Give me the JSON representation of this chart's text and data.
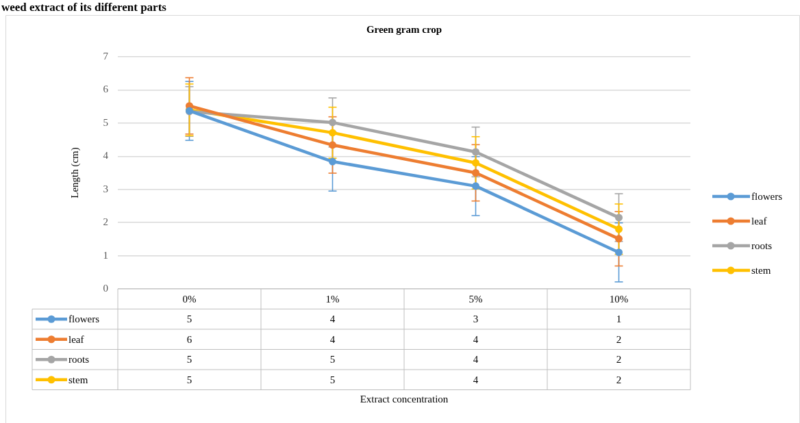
{
  "chart_data": {
    "type": "line",
    "title": "Green gram crop",
    "ylabel": "Length (cm)",
    "annotations": [
      "weed extract of its different parts",
      "Extract concentration"
    ],
    "categories": [
      "0%",
      "1%",
      "5%",
      "10%"
    ],
    "series": [
      {
        "name": "flowers",
        "color": "#5b9bd5",
        "values": [
          5.37,
          3.84,
          3.1,
          1.1
        ],
        "errors": [
          0.89,
          0.89,
          0.89,
          0.89
        ],
        "value_labels": [
          "5",
          "4",
          "3",
          "1"
        ]
      },
      {
        "name": "leaf",
        "color": "#ed7d31",
        "values": [
          5.52,
          4.34,
          3.5,
          1.51
        ],
        "errors": [
          0.85,
          0.85,
          0.85,
          0.82
        ],
        "value_labels": [
          "6",
          "4",
          "4",
          "2"
        ]
      },
      {
        "name": "roots",
        "color": "#a5a5a5",
        "values": [
          5.35,
          5.02,
          4.13,
          2.15
        ],
        "errors": [
          0.75,
          0.74,
          0.75,
          0.72
        ],
        "value_labels": [
          "5",
          "5",
          "4",
          "2"
        ]
      },
      {
        "name": "stem",
        "color": "#ffc000",
        "values": [
          5.4,
          4.71,
          3.8,
          1.8
        ],
        "errors": [
          0.78,
          0.77,
          0.79,
          0.76
        ],
        "value_labels": [
          "5",
          "5",
          "4",
          "2"
        ]
      }
    ],
    "ylim": [
      0,
      7
    ],
    "yticks": [
      0,
      1,
      2,
      3,
      4,
      5,
      6,
      7
    ],
    "grid": "y",
    "legend": "right",
    "marker": "circle",
    "line_style": "solid"
  }
}
